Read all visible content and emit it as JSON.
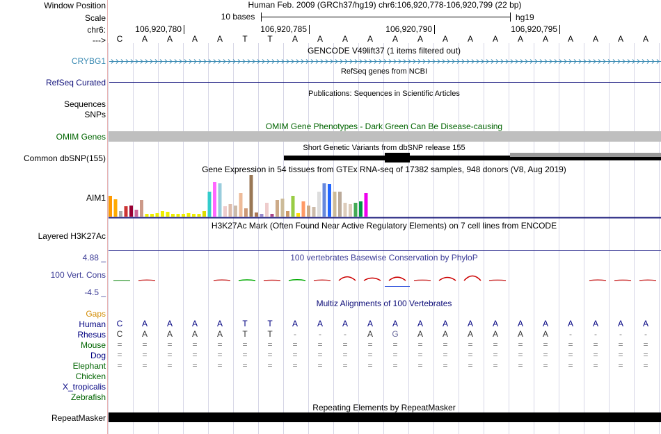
{
  "ruler": {
    "window_label": "Window Position",
    "scale_label": "Scale",
    "chr_label": "chr6:",
    "arrow_label": "--->",
    "title": "Human Feb. 2009 (GRCh37/hg19)   chr6:106,920,778-106,920,799 (22 bp)",
    "scale_text": "10 bases",
    "assembly": "hg19",
    "positions": [
      "106,920,780",
      "106,920,785",
      "106,920,790",
      "106,920,795"
    ]
  },
  "sequence": [
    "C",
    "A",
    "A",
    "A",
    "A",
    "T",
    "T",
    "A",
    "A",
    "A",
    "A",
    "A",
    "A",
    "A",
    "A",
    "A",
    "A",
    "A",
    "A",
    "A",
    "A",
    "A"
  ],
  "tracks": {
    "gencode": {
      "title": "GENCODE V49lift37 (1 items filtered out)",
      "label": "CRYBG1"
    },
    "refseq": {
      "title": "RefSeq genes from NCBI",
      "label": "RefSeq Curated"
    },
    "publications": {
      "title": "Publications: Sequences in Scientific Articles",
      "label": "Sequences"
    },
    "snps": {
      "label": "SNPs"
    },
    "omim": {
      "title": "OMIM Gene Phenotypes - Dark Green Can Be Disease-causing",
      "label": "OMIM Genes"
    },
    "dbsnp": {
      "title": "Short Genetic Variants from dbSNP release 155",
      "label": "Common dbSNP(155)"
    },
    "gtex": {
      "title": "Gene Expression in 54 tissues from GTEx RNA-seq of 17382 samples, 948 donors (V8, Aug 2019)",
      "label": "AIM1"
    },
    "h3k27ac": {
      "title": "H3K27Ac Mark (Often Found Near Active Regulatory Elements) on 7 cell lines from ENCODE",
      "label": "Layered H3K27Ac"
    },
    "phylop": {
      "title": "100 vertebrates Basewise Conservation by PhyloP",
      "label": "100 Vert. Cons",
      "max": "4.88 _",
      "min": "-4.5 _"
    },
    "multiz": {
      "title": "Multiz Alignments of 100 Vertebrates",
      "gaps_label": "Gaps"
    },
    "repeatmasker": {
      "title": "Repeating Elements by RepeatMasker",
      "label": "RepeatMasker"
    }
  },
  "species": [
    {
      "name": "Human",
      "color": "#000080",
      "row": [
        "C",
        "A",
        "A",
        "A",
        "A",
        "T",
        "T",
        "A",
        "A",
        "A",
        "A",
        "A",
        "A",
        "A",
        "A",
        "A",
        "A",
        "A",
        "A",
        "A",
        "A",
        "A"
      ]
    },
    {
      "name": "Rhesus",
      "color": "#000080",
      "row": [
        "C",
        "A",
        "A",
        "A",
        "A",
        "T",
        "T",
        "-",
        "-",
        "-",
        "A",
        "G",
        "A",
        "A",
        "A",
        "A",
        "A",
        "A",
        "-",
        "-",
        "-",
        "-"
      ]
    },
    {
      "name": "Mouse",
      "color": "#006400",
      "row": [
        "=",
        "=",
        "=",
        "=",
        "=",
        "=",
        "=",
        "=",
        "=",
        "=",
        "=",
        "=",
        "=",
        "=",
        "=",
        "=",
        "=",
        "=",
        "=",
        "=",
        "=",
        "="
      ]
    },
    {
      "name": "Dog",
      "color": "#000080",
      "row": [
        "=",
        "=",
        "=",
        "=",
        "=",
        "=",
        "=",
        "=",
        "=",
        "=",
        "=",
        "=",
        "=",
        "=",
        "=",
        "=",
        "=",
        "=",
        "=",
        "=",
        "=",
        "="
      ]
    },
    {
      "name": "Elephant",
      "color": "#006400",
      "row": [
        "=",
        "=",
        "=",
        "=",
        "=",
        "=",
        "=",
        "=",
        "=",
        "=",
        "=",
        "=",
        "=",
        "=",
        "=",
        "=",
        "=",
        "=",
        "=",
        "=",
        "=",
        "="
      ]
    },
    {
      "name": "Chicken",
      "color": "#006400",
      "row": []
    },
    {
      "name": "X_tropicalis",
      "color": "#000080",
      "row": []
    },
    {
      "name": "Zebrafish",
      "color": "#006400",
      "row": []
    }
  ],
  "gtex_bars": [
    {
      "v": 30,
      "c": "#ff9900"
    },
    {
      "v": 25,
      "c": "#ffaa00"
    },
    {
      "v": 8,
      "c": "#aaaaaa"
    },
    {
      "v": 15,
      "c": "#cc3333"
    },
    {
      "v": 16,
      "c": "#990033"
    },
    {
      "v": 10,
      "c": "#cc6699"
    },
    {
      "v": 24,
      "c": "#cc9988"
    },
    {
      "v": 4,
      "c": "#eeee00"
    },
    {
      "v": 4,
      "c": "#eeee00"
    },
    {
      "v": 5,
      "c": "#eeee00"
    },
    {
      "v": 8,
      "c": "#eeee00"
    },
    {
      "v": 7,
      "c": "#eeee00"
    },
    {
      "v": 4,
      "c": "#eeee00"
    },
    {
      "v": 4,
      "c": "#eeee00"
    },
    {
      "v": 4,
      "c": "#eeee00"
    },
    {
      "v": 5,
      "c": "#eeee00"
    },
    {
      "v": 4,
      "c": "#eeee00"
    },
    {
      "v": 4,
      "c": "#eeee00"
    },
    {
      "v": 8,
      "c": "#dddd00"
    },
    {
      "v": 36,
      "c": "#33cccc"
    },
    {
      "v": 50,
      "c": "#ff66ff"
    },
    {
      "v": 48,
      "c": "#99ccdd"
    },
    {
      "v": 15,
      "c": "#eecccc"
    },
    {
      "v": 18,
      "c": "#ddbbaa"
    },
    {
      "v": 16,
      "c": "#ccbbaa"
    },
    {
      "v": 34,
      "c": "#eebb99"
    },
    {
      "v": 12,
      "c": "#cc9977"
    },
    {
      "v": 60,
      "c": "#997755"
    },
    {
      "v": 6,
      "c": "#aa7755"
    },
    {
      "v": 4,
      "c": "#9988cc"
    },
    {
      "v": 20,
      "c": "#eecccc"
    },
    {
      "v": 4,
      "c": "#aa4488"
    },
    {
      "v": 24,
      "c": "#ccaa88"
    },
    {
      "v": 26,
      "c": "#ccbb99"
    },
    {
      "v": 8,
      "c": "#cc9966"
    },
    {
      "v": 30,
      "c": "#99cc44"
    },
    {
      "v": 5,
      "c": "#ffdd00"
    },
    {
      "v": 22,
      "c": "#ff9966"
    },
    {
      "v": 16,
      "c": "#ccaa88"
    },
    {
      "v": 14,
      "c": "#ccbbaa"
    },
    {
      "v": 36,
      "c": "#dddddd"
    },
    {
      "v": 48,
      "c": "#6688dd"
    },
    {
      "v": 47,
      "c": "#2266ff"
    },
    {
      "v": 36,
      "c": "#ccbb99"
    },
    {
      "v": 36,
      "c": "#bbaa99"
    },
    {
      "v": 20,
      "c": "#ddccbb"
    },
    {
      "v": 18,
      "c": "#ddccbb"
    },
    {
      "v": 20,
      "c": "#44aa55"
    },
    {
      "v": 22,
      "c": "#009944"
    },
    {
      "v": 34,
      "c": "#ee00ee"
    }
  ],
  "phylop_segments": [
    {
      "i": 0,
      "v": 0.1,
      "c": "#55aa55"
    },
    {
      "i": 1,
      "v": 0.25,
      "c": "#cc3333"
    },
    {
      "i": 4,
      "v": 0.3,
      "c": "#cc3333"
    },
    {
      "i": 5,
      "v": 0.35,
      "c": "#00aa00"
    },
    {
      "i": 6,
      "v": 0.15,
      "c": "#cc3333"
    },
    {
      "i": 7,
      "v": 0.4,
      "c": "#00aa00"
    },
    {
      "i": 8,
      "v": 0.25,
      "c": "#cc3333"
    },
    {
      "i": 9,
      "v": 1.8,
      "c": "#cc0000"
    },
    {
      "i": 10,
      "v": 1.2,
      "c": "#cc0000"
    },
    {
      "i": 11,
      "v": 1.6,
      "c": "#cc0000"
    },
    {
      "i": 12,
      "v": 0.2,
      "c": "#cc3333"
    },
    {
      "i": 13,
      "v": 1.5,
      "c": "#cc0000"
    },
    {
      "i": 14,
      "v": 2.2,
      "c": "#cc0000"
    },
    {
      "i": 15,
      "v": 0.2,
      "c": "#cc3333"
    },
    {
      "i": 19,
      "v": 0.3,
      "c": "#cc3333"
    },
    {
      "i": 20,
      "v": 0.2,
      "c": "#cc3333"
    },
    {
      "i": 21,
      "v": 0.25,
      "c": "#cc3333"
    }
  ]
}
